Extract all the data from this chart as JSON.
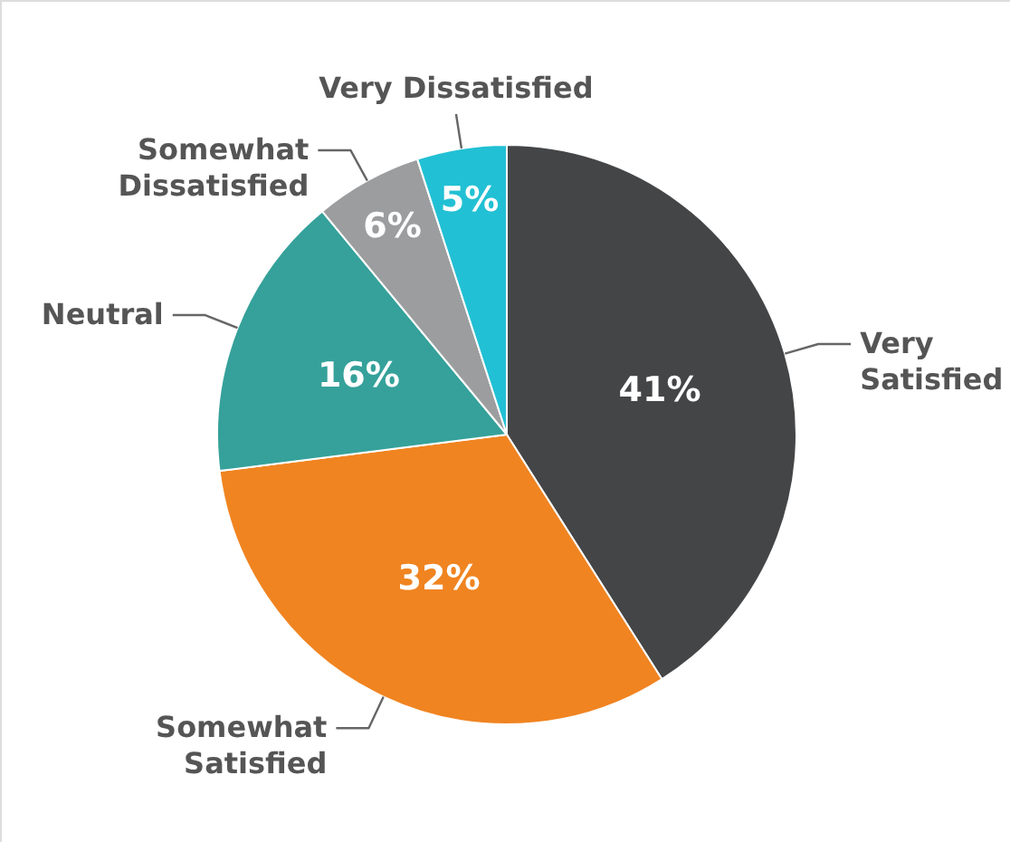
{
  "chart_data": {
    "type": "pie",
    "categories": [
      "Very\nSatisfied",
      "Somewhat\nSatisfied",
      "Neutral",
      "Somewhat\nDissatisfied",
      "Very Dissatisfied"
    ],
    "values": [
      41,
      32,
      16,
      6,
      5
    ],
    "value_labels": [
      "41%",
      "32%",
      "16%",
      "6%",
      "5%"
    ],
    "colors": [
      "#444547",
      "#f08421",
      "#35a19a",
      "#9c9d9f",
      "#22c0d4"
    ]
  }
}
